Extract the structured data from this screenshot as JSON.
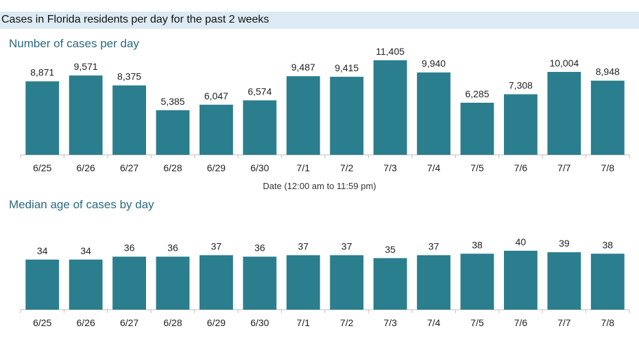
{
  "header": {
    "title": "Cases in Florida residents per day for the past 2 weeks"
  },
  "chart_data": [
    {
      "type": "bar",
      "title": "Number of cases per day",
      "xlabel": "Date (12:00 am to 11:59 pm)",
      "ylabel": "",
      "categories": [
        "6/25",
        "6/26",
        "6/27",
        "6/28",
        "6/29",
        "6/30",
        "7/1",
        "7/2",
        "7/3",
        "7/4",
        "7/5",
        "7/6",
        "7/7",
        "7/8"
      ],
      "values": [
        8871,
        9571,
        8375,
        5385,
        6047,
        6574,
        9487,
        9415,
        11405,
        9940,
        6285,
        7308,
        10004,
        8948
      ],
      "value_labels": [
        "8,871",
        "9,571",
        "8,375",
        "5,385",
        "6,047",
        "6,574",
        "9,487",
        "9,415",
        "11,405",
        "9,940",
        "6,285",
        "7,308",
        "10,004",
        "8,948"
      ],
      "ylim": [
        0,
        11405
      ],
      "grid": false,
      "color": "#2b7e8e"
    },
    {
      "type": "bar",
      "title": "Median age of cases by day",
      "xlabel": "",
      "ylabel": "",
      "categories": [
        "6/25",
        "6/26",
        "6/27",
        "6/28",
        "6/29",
        "6/30",
        "7/1",
        "7/2",
        "7/3",
        "7/4",
        "7/5",
        "7/6",
        "7/7",
        "7/8"
      ],
      "values": [
        34,
        34,
        36,
        36,
        37,
        36,
        37,
        37,
        35,
        37,
        38,
        40,
        39,
        38
      ],
      "value_labels": [
        "34",
        "34",
        "36",
        "36",
        "37",
        "36",
        "37",
        "37",
        "35",
        "37",
        "38",
        "40",
        "39",
        "38"
      ],
      "ylim": [
        0,
        40
      ],
      "grid": false,
      "color": "#2b7e8e"
    }
  ]
}
